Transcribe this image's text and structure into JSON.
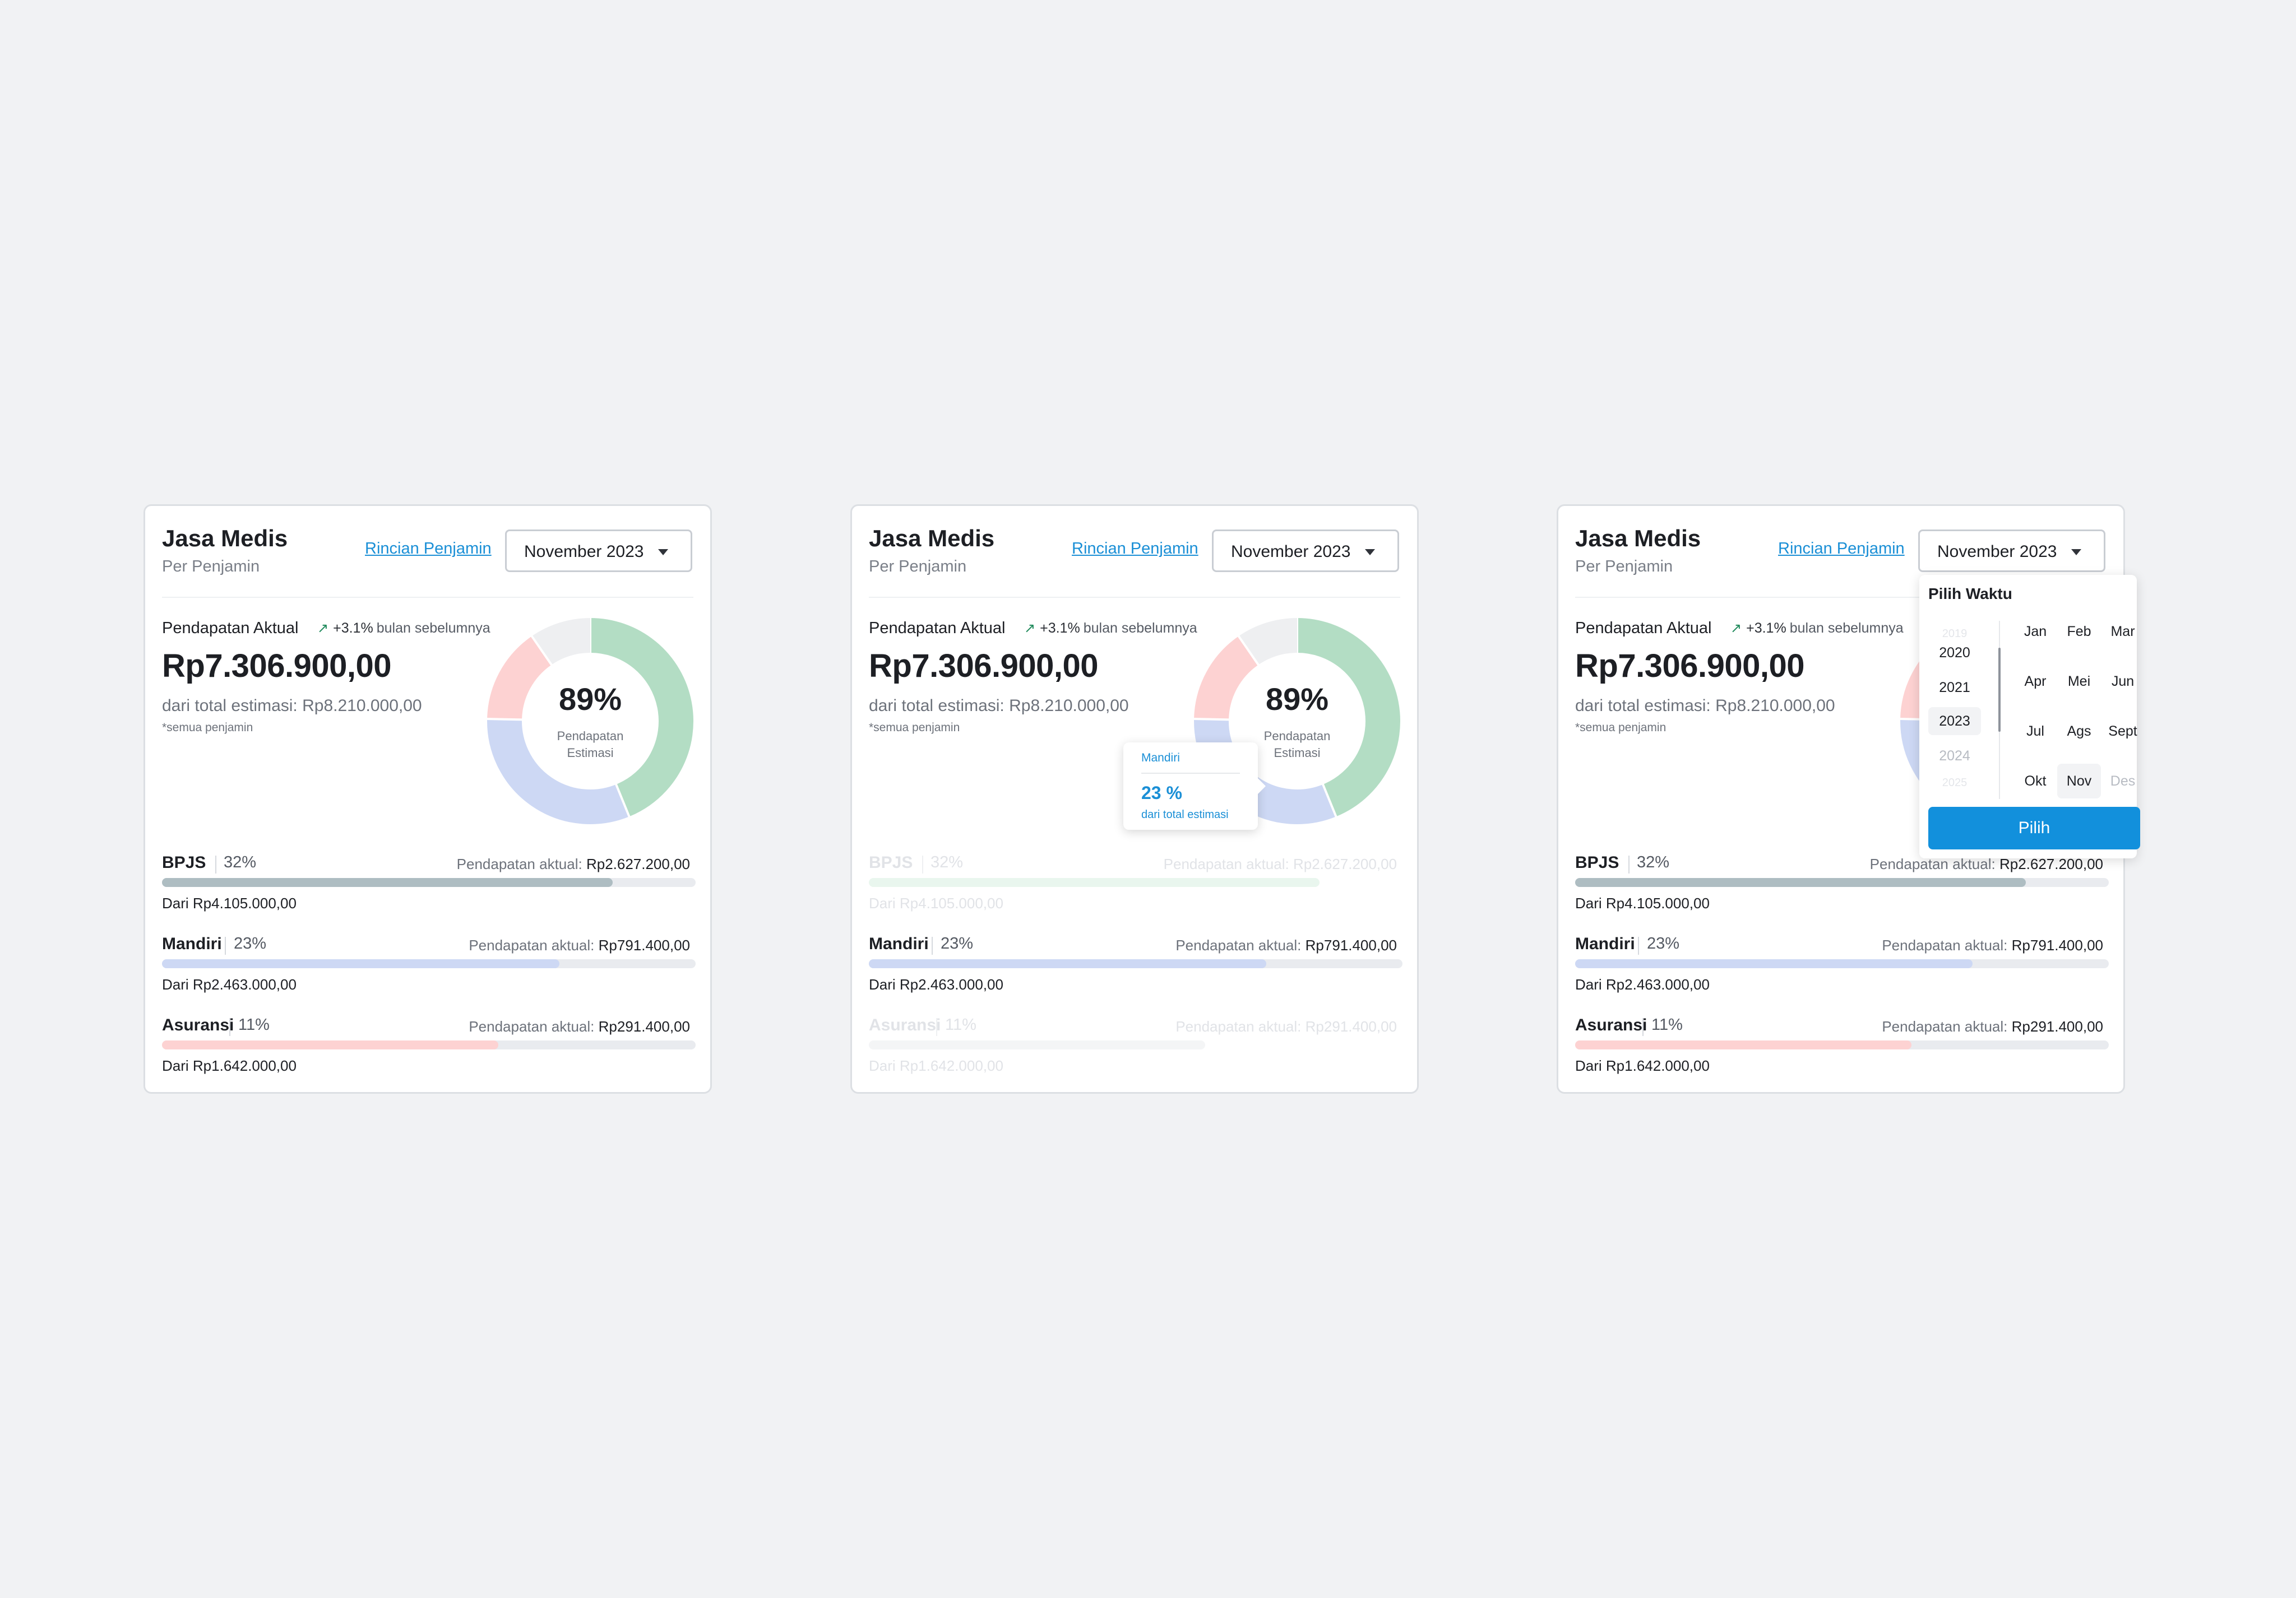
{
  "card": {
    "title": "Jasa Medis",
    "subtitle": "Per Penjamin",
    "link": "Rincian Penjamin",
    "period": "November 2023",
    "actual_label": "Pendapatan Aktual",
    "trend_icon": "trending-up-icon",
    "trend_pct": "+3.1%",
    "trend_text": "bulan sebelumnya",
    "amount": "Rp7.306.900,00",
    "estimate": "dari total estimasi: Rp8.210.000,00",
    "note": "*semua penjamin",
    "center_pct": "89%",
    "center_line1": "Pendapatan",
    "center_line2": "Estimasi",
    "actual_prefix": "Pendapatan aktual:"
  },
  "donut_segments": [
    {
      "name": "BPJS",
      "percent": 32,
      "color": "#b3ddc4"
    },
    {
      "name": "Mandiri",
      "percent": 23,
      "color": "#cdd8f4"
    },
    {
      "name": "Asuransi",
      "percent": 11,
      "color": "#fdd2d2"
    },
    {
      "name": "rest",
      "percent": 7,
      "color": "#eeeff1"
    }
  ],
  "insurers": [
    {
      "name": "BPJS",
      "share": "32%",
      "actual": "Rp2.627.200,00",
      "from": "Dari Rp4.105.000,00",
      "progress": 0.845,
      "color": "#aebdc2",
      "faded_color": "#e9f6ee"
    },
    {
      "name": "Mandiri",
      "share": "23%",
      "actual": "Rp791.400,00",
      "from": "Dari Rp2.463.000,00",
      "progress": 0.745,
      "color": "#cdd8f4",
      "faded_color": "#cdd8f4"
    },
    {
      "name": "Asuransi",
      "share": "11%",
      "actual": "Rp291.400,00",
      "from": "Dari Rp1.642.000,00",
      "progress": 0.63,
      "color": "#fdd2d2",
      "faded_color": "#f4f5f6"
    }
  ],
  "tooltip": {
    "name": "Mandiri",
    "pct": "23 %",
    "sub": "dari total estimasi"
  },
  "picker": {
    "title": "Pilih Waktu",
    "years": [
      "2019",
      "2020",
      "2021",
      "2023",
      "2024",
      "2025"
    ],
    "months": [
      [
        "Jan",
        "Feb",
        "Mar"
      ],
      [
        "Apr",
        "Mei",
        "Jun"
      ],
      [
        "Jul",
        "Ags",
        "Sept"
      ],
      [
        "Okt",
        "Nov",
        "Des"
      ]
    ],
    "button": "Pilih"
  }
}
